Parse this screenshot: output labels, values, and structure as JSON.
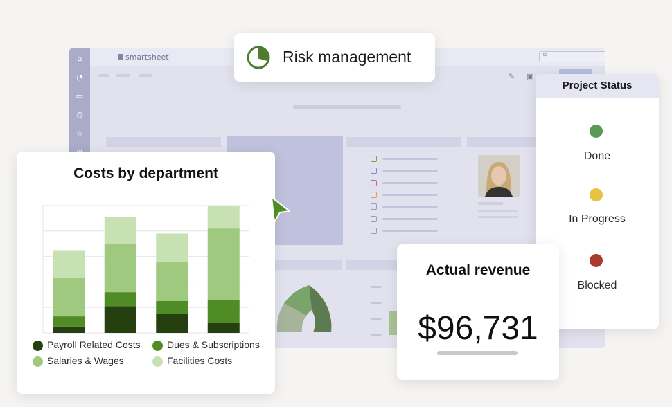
{
  "app": {
    "logo_text": "smartsheet",
    "rail_icons": [
      "home-icon",
      "bell-icon",
      "folder-icon",
      "clock-icon",
      "star-icon",
      "globe-icon"
    ],
    "search_icon": "⚲",
    "toolbar_icons": [
      "pencil-icon",
      "present-icon",
      "share-icon"
    ],
    "list_icon_colors": [
      "#7aa35a",
      "#7b8fd9",
      "#c063b3",
      "#d9a24e",
      "#9a9cb5",
      "#9a9cb5",
      "#9a9cb5"
    ]
  },
  "risk": {
    "title": "Risk management",
    "icon": "pie-chart-icon",
    "accent": "#4f7c2e"
  },
  "costs": {
    "title": "Costs by department",
    "legend": [
      {
        "label": "Payroll Related Costs",
        "color": "#253f10"
      },
      {
        "label": "Dues & Subscriptions",
        "color": "#4f8c26"
      },
      {
        "label": "Salaries & Wages",
        "color": "#9fc97e"
      },
      {
        "label": "Facilities Costs",
        "color": "#c7e1b3"
      }
    ]
  },
  "chart_data": {
    "type": "bar",
    "stacked": true,
    "categories": [
      "",
      "",
      "",
      ""
    ],
    "ylim": [
      0,
      100
    ],
    "grid": true,
    "legend_placement": "bottom",
    "series": [
      {
        "name": "Payroll Related Costs",
        "color": "#253f10",
        "values": [
          5,
          21,
          15,
          8
        ]
      },
      {
        "name": "Dues & Subscriptions",
        "color": "#4f8c26",
        "values": [
          8,
          11,
          10,
          18
        ]
      },
      {
        "name": "Salaries & Wages",
        "color": "#9fc97e",
        "values": [
          30,
          38,
          31,
          56
        ]
      },
      {
        "name": "Facilities Costs",
        "color": "#c7e1b3",
        "values": [
          22,
          21,
          22,
          18
        ]
      }
    ]
  },
  "status": {
    "title": "Project Status",
    "items": [
      {
        "label": "Done",
        "color": "#5b9a54"
      },
      {
        "label": "In Progress",
        "color": "#e8c341"
      },
      {
        "label": "Blocked",
        "color": "#a93c2e"
      }
    ]
  },
  "revenue": {
    "title": "Actual revenue",
    "value": "$96,731"
  },
  "cursor": {
    "icon": "cursor-arrow-icon",
    "color": "#4f8c26"
  }
}
